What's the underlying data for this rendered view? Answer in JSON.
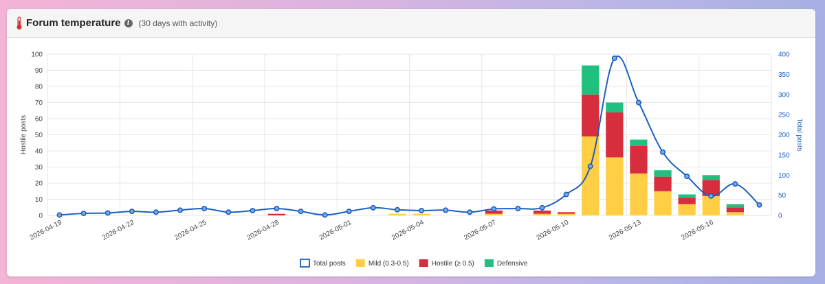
{
  "header": {
    "title": "Forum temperature",
    "subtitle": "(30 days with activity)",
    "info_icon": "info-icon",
    "title_icon": "thermometer-icon"
  },
  "colors": {
    "mild": "#ffce44",
    "hostile": "#d62e3f",
    "defensive": "#20c07e",
    "total": "#1a5fc0",
    "total_label": "#1a5fc0"
  },
  "chart_data": {
    "type": "bar",
    "x": [
      "2026-04-19",
      "2026-04-20",
      "2026-04-21",
      "2026-04-22",
      "2026-04-23",
      "2026-04-24",
      "2026-04-25",
      "2026-04-26",
      "2026-04-27",
      "2026-04-28",
      "2026-04-29",
      "2026-04-30",
      "2026-05-01",
      "2026-05-02",
      "2026-05-03",
      "2026-05-04",
      "2026-05-05",
      "2026-05-06",
      "2026-05-07",
      "2026-05-08",
      "2026-05-09",
      "2026-05-10",
      "2026-05-11",
      "2026-05-12",
      "2026-05-13",
      "2026-05-14",
      "2026-05-15",
      "2026-05-16",
      "2026-05-17",
      "2026-05-18"
    ],
    "x_tick_labels": [
      "2026-04-19",
      "2026-04-22",
      "2026-04-25",
      "2026-04-28",
      "2026-05-01",
      "2026-05-04",
      "2026-05-07",
      "2026-05-10",
      "2026-05-13",
      "2026-05-16"
    ],
    "series": [
      {
        "name": "Mild (0.3-0.5)",
        "axis": "left",
        "values": [
          0,
          0,
          0,
          0,
          0,
          0,
          0,
          0,
          0,
          0,
          0,
          0,
          0,
          0,
          1,
          1,
          0,
          0,
          1,
          0,
          1,
          1,
          49,
          36,
          26,
          15,
          7,
          12,
          2,
          0
        ]
      },
      {
        "name": "Hostile (≥ 0.5)",
        "axis": "left",
        "values": [
          0,
          0,
          0,
          0,
          0,
          0,
          0,
          0,
          0,
          1,
          0,
          0,
          0,
          0,
          0,
          0,
          0,
          0,
          2,
          0,
          2,
          1,
          26,
          28,
          17,
          9,
          4,
          10,
          3,
          0
        ]
      },
      {
        "name": "Defensive",
        "axis": "left",
        "values": [
          0,
          0,
          0,
          0,
          0,
          0,
          0,
          0,
          0,
          0,
          0,
          0,
          0,
          0,
          0,
          0,
          0,
          0,
          0,
          0,
          0,
          0,
          18,
          6,
          4,
          4,
          2,
          3,
          2,
          0
        ]
      },
      {
        "name": "Total posts",
        "axis": "right",
        "type": "line",
        "values": [
          1,
          5,
          6,
          10,
          8,
          13,
          17,
          8,
          12,
          17,
          10,
          1,
          10,
          19,
          14,
          12,
          13,
          8,
          16,
          17,
          19,
          52,
          122,
          390,
          280,
          157,
          97,
          48,
          78,
          26
        ]
      }
    ],
    "ylabel": "Hostile posts",
    "y2label": "Total posts",
    "ylim": [
      0,
      100
    ],
    "y2lim": [
      0,
      400
    ],
    "yticks": [
      0,
      10,
      20,
      30,
      40,
      50,
      60,
      70,
      80,
      90,
      100
    ],
    "y2ticks": [
      0,
      50,
      100,
      150,
      200,
      250,
      300,
      350,
      400
    ],
    "grid": true,
    "legend": [
      "Total posts",
      "Mild (0.3-0.5)",
      "Hostile (≥ 0.5)",
      "Defensive"
    ],
    "legend_position": "bottom"
  }
}
